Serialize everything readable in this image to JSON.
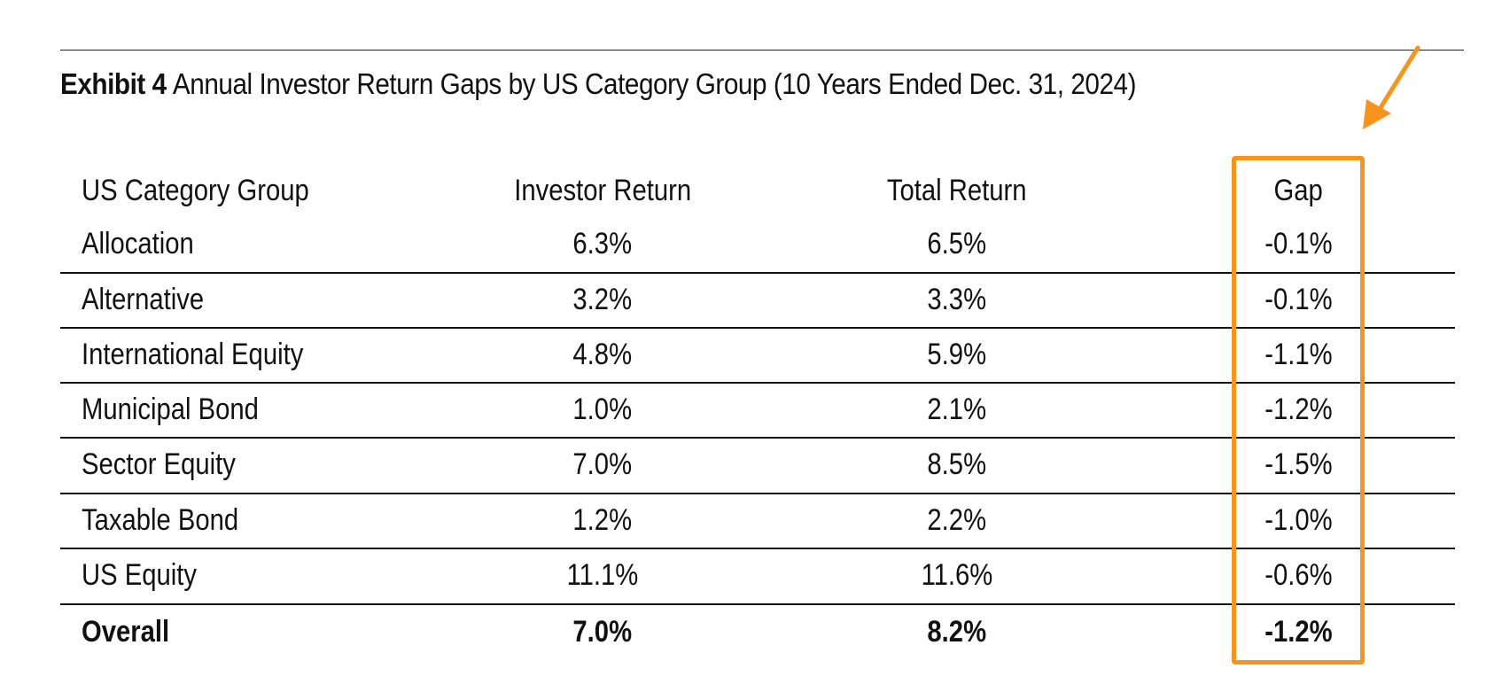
{
  "exhibit": {
    "label": "Exhibit 4",
    "title": "Annual Investor Return Gaps by US Category Group (10 Years Ended Dec. 31, 2024)"
  },
  "table": {
    "headers": {
      "category": "US Category Group",
      "investor_return": "Investor Return",
      "total_return": "Total Return",
      "gap": "Gap"
    },
    "rows": [
      {
        "category": "Allocation",
        "investor_return": "6.3%",
        "total_return": "6.5%",
        "gap": "-0.1%"
      },
      {
        "category": "Alternative",
        "investor_return": "3.2%",
        "total_return": "3.3%",
        "gap": "-0.1%"
      },
      {
        "category": "International Equity",
        "investor_return": "4.8%",
        "total_return": "5.9%",
        "gap": "-1.1%"
      },
      {
        "category": "Municipal Bond",
        "investor_return": "1.0%",
        "total_return": "2.1%",
        "gap": "-1.2%"
      },
      {
        "category": "Sector Equity",
        "investor_return": "7.0%",
        "total_return": "8.5%",
        "gap": "-1.5%"
      },
      {
        "category": "Taxable Bond",
        "investor_return": "1.2%",
        "total_return": "2.2%",
        "gap": "-1.0%"
      },
      {
        "category": "US Equity",
        "investor_return": "11.1%",
        "total_return": "11.6%",
        "gap": "-0.6%"
      }
    ],
    "overall": {
      "category": "Overall",
      "investor_return": "7.0%",
      "total_return": "8.2%",
      "gap": "-1.2%"
    }
  },
  "annotation": {
    "highlight_color": "#f7941d",
    "highlighted_column": "gap",
    "arrow_icon": "arrow-down-left-icon"
  }
}
